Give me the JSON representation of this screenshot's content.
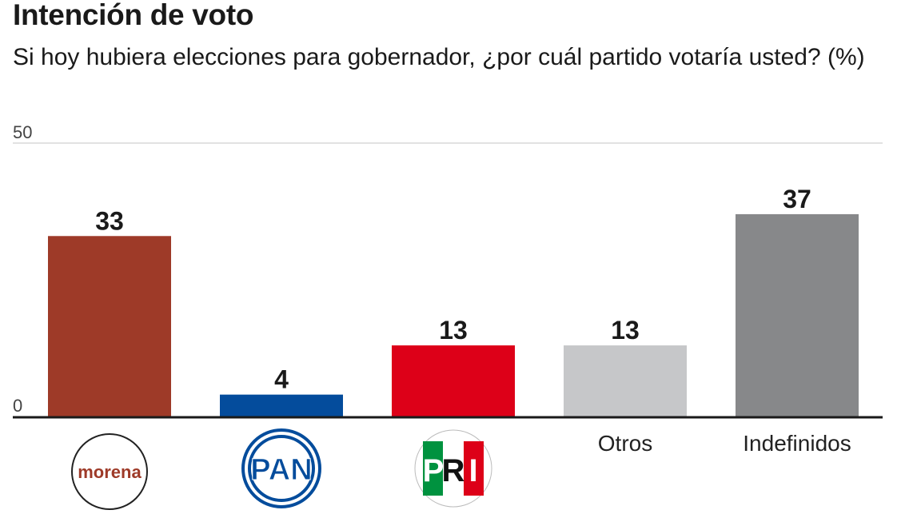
{
  "title": "Intención de voto",
  "subtitle": "Si hoy hubiera elecciones para gobernador, ¿por cuál partido votaría usted? (%)",
  "chart_data": {
    "type": "bar",
    "title": "Intención de voto",
    "subtitle": "Si hoy hubiera elecciones para gobernador, ¿por cuál partido votaría usted? (%)",
    "xlabel": "",
    "ylabel": "%",
    "ylim": [
      0,
      50
    ],
    "yticks": [
      "0",
      "50"
    ],
    "grid": true,
    "categories": [
      "morena",
      "PAN",
      "PRI",
      "Otros",
      "Indefinidos"
    ],
    "values": [
      33,
      4,
      13,
      13,
      37
    ],
    "value_labels": [
      "33",
      "4",
      "13",
      "13",
      "37"
    ],
    "colors": [
      "#9e3a28",
      "#044c9c",
      "#dd0018",
      "#c6c7c9",
      "#87888a"
    ],
    "logos": [
      {
        "category": "morena",
        "text": "morena",
        "color": "#9e3a28"
      },
      {
        "category": "PAN",
        "text": "PAN",
        "color": "#044c9c"
      },
      {
        "category": "PRI",
        "text": [
          "P",
          "R",
          "I"
        ],
        "colors": [
          "#00923f",
          "#ffffff",
          "#dd0018"
        ]
      },
      null,
      null
    ]
  }
}
